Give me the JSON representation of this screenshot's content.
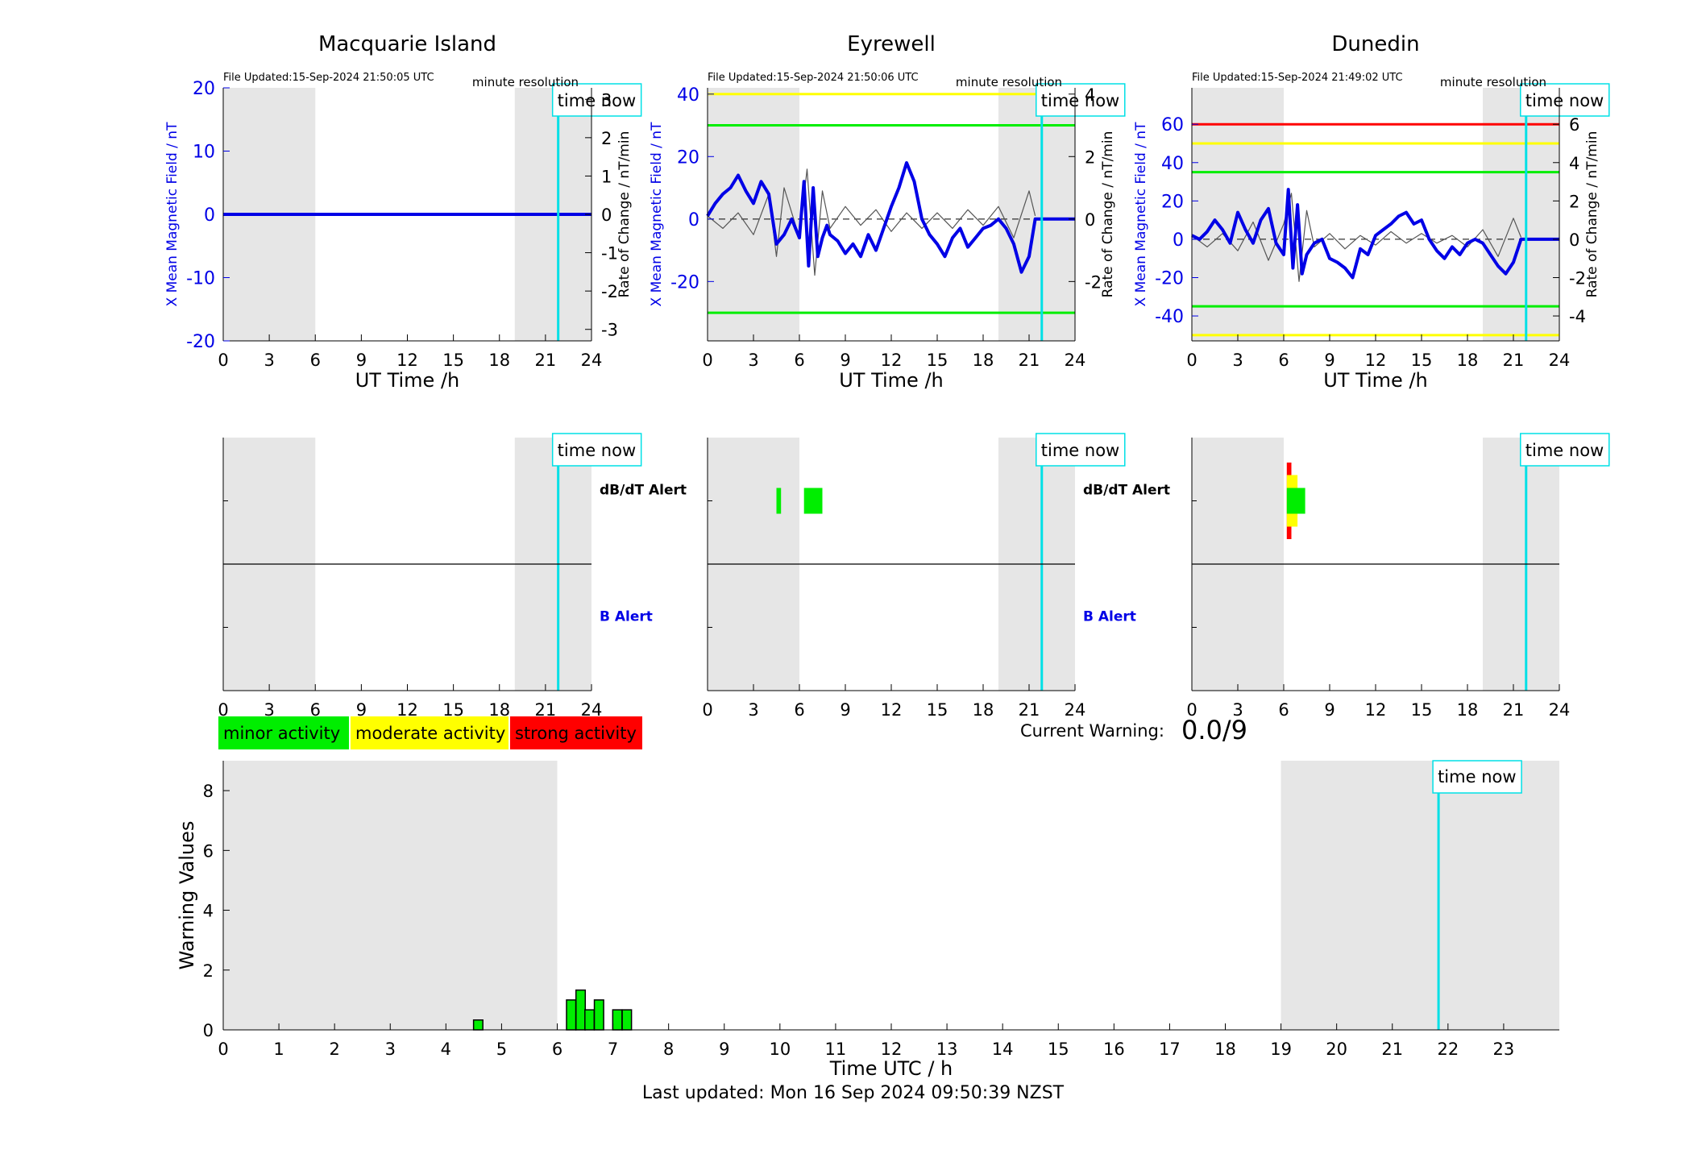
{
  "page": {
    "last_updated": "Last updated: Mon 16 Sep 2024 09:50:39 NZST",
    "current_warning_label": "Current Warning:",
    "current_warning_value": "0.0/9",
    "time_now_label": "time now",
    "minute_resolution_label": "minute resolution",
    "legend": [
      {
        "label": "minor activity",
        "color": "#00ee00"
      },
      {
        "label": "moderate activity",
        "color": "#ffff00"
      },
      {
        "label": "strong activity",
        "color": "#ff0000"
      }
    ],
    "colors": {
      "x_field": "#0000e6",
      "rate": "#555555",
      "time_now": "#00e0e6",
      "night_shade": "#e6e6e6"
    }
  },
  "chart_data": [
    {
      "id": "macquarie-field",
      "type": "line",
      "title": "Macquarie Island",
      "file_updated": "File Updated:15-Sep-2024 21:50:05 UTC",
      "xlabel": "UT Time /h",
      "ylabel": "X Mean Magnetic Field / nT",
      "ylabel_right": "Rate of Change / nT/min",
      "xlim": [
        0,
        24
      ],
      "ylim": [
        -20,
        20
      ],
      "ylim_right": [
        -3.3,
        3.3
      ],
      "xticks": [
        "0",
        "3",
        "6",
        "9",
        "12",
        "15",
        "18",
        "21",
        "24"
      ],
      "yticks": [
        "-20",
        "-10",
        "0",
        "10",
        "20"
      ],
      "yticks_right": [
        "-3",
        "-2",
        "-1",
        "0",
        "1",
        "2",
        "3"
      ],
      "night": [
        [
          0,
          6
        ],
        [
          19,
          24
        ]
      ],
      "time_now": 21.83,
      "thresholds": [],
      "series": [
        {
          "name": "",
          "color": "#0000e6",
          "x": [
            0,
            24
          ],
          "y": [
            0,
            0
          ]
        }
      ]
    },
    {
      "id": "eyrewell-field",
      "type": "line",
      "title": "Eyrewell",
      "file_updated": "File Updated:15-Sep-2024 21:50:06 UTC",
      "xlabel": "UT Time /h",
      "ylabel": "X Mean Magnetic Field / nT",
      "ylabel_right": "Rate of Change / nT/min",
      "xlim": [
        0,
        24
      ],
      "ylim": [
        -39,
        42
      ],
      "ylim_right": [
        -3.9,
        4.2
      ],
      "xticks": [
        "0",
        "3",
        "6",
        "9",
        "12",
        "15",
        "18",
        "21",
        "24"
      ],
      "yticks": [
        "-20",
        "0",
        "20",
        "40"
      ],
      "yticks_right": [
        "-2",
        "0",
        "2",
        "4"
      ],
      "night": [
        [
          0,
          6
        ],
        [
          19,
          24
        ]
      ],
      "time_now": 21.83,
      "thresholds": [
        {
          "value": 40,
          "color": "#ffff00"
        },
        {
          "value": 30,
          "color": "#00ee00"
        },
        {
          "value": -30,
          "color": "#00ee00"
        }
      ],
      "series": [
        {
          "name": "",
          "color": "#0000e6",
          "x": [
            0,
            0.5,
            1,
            1.5,
            2,
            2.5,
            3,
            3.5,
            4,
            4.5,
            5,
            5.5,
            6,
            6.3,
            6.6,
            6.9,
            7.2,
            7.5,
            7.8,
            8,
            8.5,
            9,
            9.5,
            10,
            10.5,
            11,
            11.5,
            12,
            12.5,
            13,
            13.5,
            14,
            14.5,
            15,
            15.5,
            16,
            16.5,
            17,
            17.5,
            18,
            18.5,
            19,
            19.5,
            20,
            20.5,
            21,
            21.4,
            21.5,
            24
          ],
          "y": [
            1,
            5,
            8,
            10,
            14,
            9,
            5,
            12,
            8,
            -8,
            -5,
            0,
            -6,
            12,
            -15,
            10,
            -12,
            -6,
            -2,
            -5,
            -7,
            -11,
            -8,
            -12,
            -5,
            -10,
            -3,
            4,
            10,
            18,
            12,
            0,
            -5,
            -8,
            -12,
            -6,
            -3,
            -9,
            -6,
            -3,
            -2,
            0,
            -3,
            -8,
            -17,
            -12,
            0,
            0,
            0
          ]
        },
        {
          "name": "",
          "color": "#555555",
          "x": [
            0,
            1,
            2,
            3,
            4,
            4.5,
            5,
            6,
            6.5,
            7,
            7.5,
            8,
            9,
            10,
            11,
            12,
            13,
            14,
            15,
            16,
            17,
            18,
            19,
            20,
            21,
            21.4
          ],
          "y": [
            0.1,
            -0.3,
            0.2,
            -0.5,
            0.8,
            -1.2,
            1.0,
            -0.6,
            1.6,
            -1.8,
            0.9,
            -0.3,
            0.4,
            -0.2,
            0.3,
            -0.4,
            0.2,
            -0.3,
            0.2,
            -0.3,
            0.3,
            -0.2,
            0.4,
            -0.6,
            0.9,
            0.1
          ]
        }
      ]
    },
    {
      "id": "dunedin-field",
      "type": "line",
      "title": "Dunedin",
      "file_updated": "File Updated:15-Sep-2024 21:49:02 UTC",
      "xlabel": "UT Time /h",
      "ylabel": "X Mean Magnetic Field / nT",
      "ylabel_right": "Rate of Change / nT/min",
      "xlim": [
        0,
        24
      ],
      "ylim": [
        -53,
        79
      ],
      "ylim_right": [
        -5.3,
        7.9
      ],
      "xticks": [
        "0",
        "3",
        "6",
        "9",
        "12",
        "15",
        "18",
        "21",
        "24"
      ],
      "yticks": [
        "-40",
        "-20",
        "0",
        "20",
        "40",
        "60"
      ],
      "yticks_right": [
        "-4",
        "-2",
        "0",
        "2",
        "4",
        "6"
      ],
      "night": [
        [
          0,
          6
        ],
        [
          19,
          24
        ]
      ],
      "time_now": 21.83,
      "thresholds": [
        {
          "value": 60,
          "color": "#ff0000"
        },
        {
          "value": 50,
          "color": "#ffff00"
        },
        {
          "value": 35,
          "color": "#00ee00"
        },
        {
          "value": -35,
          "color": "#00ee00"
        },
        {
          "value": -50,
          "color": "#ffff00"
        }
      ],
      "series": [
        {
          "name": "",
          "color": "#0000e6",
          "x": [
            0,
            0.5,
            1,
            1.5,
            2,
            2.5,
            3,
            3.5,
            4,
            4.5,
            5,
            5.5,
            6,
            6.3,
            6.6,
            6.9,
            7.2,
            7.5,
            8,
            8.5,
            9,
            9.5,
            10,
            10.5,
            11,
            11.5,
            12,
            12.5,
            13,
            13.5,
            14,
            14.5,
            15,
            15.5,
            16,
            16.5,
            17,
            17.5,
            18,
            18.5,
            19,
            19.5,
            20,
            20.5,
            21,
            21.5,
            24
          ],
          "y": [
            2,
            0,
            4,
            10,
            5,
            -2,
            14,
            5,
            -2,
            10,
            16,
            -2,
            -8,
            26,
            -15,
            18,
            -18,
            -8,
            -2,
            0,
            -10,
            -12,
            -15,
            -20,
            -5,
            -8,
            2,
            5,
            8,
            12,
            14,
            8,
            10,
            0,
            -6,
            -10,
            -4,
            -8,
            -2,
            0,
            -2,
            -8,
            -14,
            -18,
            -12,
            0,
            0
          ]
        },
        {
          "name": "",
          "color": "#555555",
          "x": [
            0,
            1,
            2,
            3,
            4,
            5,
            6,
            6.5,
            7,
            7.5,
            8,
            9,
            10,
            11,
            12,
            13,
            14,
            15,
            16,
            17,
            18,
            19,
            20,
            21,
            21.5
          ],
          "y": [
            0.2,
            -0.4,
            0.3,
            -0.6,
            0.9,
            -1.1,
            0.8,
            2.4,
            -2.2,
            1.5,
            -0.4,
            0.3,
            -0.5,
            0.2,
            -0.3,
            0.4,
            -0.2,
            0.3,
            -0.2,
            0.2,
            -0.4,
            0.5,
            -0.9,
            1.1,
            0.1
          ]
        }
      ]
    },
    {
      "id": "macquarie-alert",
      "type": "bar",
      "xlim": [
        0,
        24
      ],
      "xticks": [
        "0",
        "3",
        "6",
        "9",
        "12",
        "15",
        "18",
        "21",
        "24"
      ],
      "night": [
        [
          0,
          6
        ],
        [
          19,
          24
        ]
      ],
      "time_now": 21.83,
      "dbdt_label": "dB/dT Alert",
      "b_label": "B Alert",
      "dbdt_events": [],
      "b_events": []
    },
    {
      "id": "eyrewell-alert",
      "type": "bar",
      "xlim": [
        0,
        24
      ],
      "xticks": [
        "0",
        "3",
        "6",
        "9",
        "12",
        "15",
        "18",
        "21",
        "24"
      ],
      "night": [
        [
          0,
          6
        ],
        [
          19,
          24
        ]
      ],
      "time_now": 21.83,
      "dbdt_label": "dB/dT Alert",
      "b_label": "B Alert",
      "dbdt_events": [
        {
          "start": 4.5,
          "end": 4.8,
          "level": 1
        },
        {
          "start": 6.3,
          "end": 7.5,
          "level": 1
        }
      ],
      "b_events": []
    },
    {
      "id": "dunedin-alert",
      "type": "bar",
      "xlim": [
        0,
        24
      ],
      "xticks": [
        "0",
        "3",
        "6",
        "9",
        "12",
        "15",
        "18",
        "21",
        "24"
      ],
      "night": [
        [
          0,
          6
        ],
        [
          19,
          24
        ]
      ],
      "time_now": 21.83,
      "dbdt_label": "",
      "b_label": "",
      "dbdt_events": [
        {
          "start": 6.2,
          "end": 6.5,
          "level": 3
        },
        {
          "start": 6.2,
          "end": 6.9,
          "level": 2
        },
        {
          "start": 6.2,
          "end": 7.4,
          "level": 1
        }
      ],
      "b_events": []
    },
    {
      "id": "warning-values",
      "type": "bar",
      "xlabel": "Time UTC / h",
      "ylabel": "Warning Values",
      "xlim": [
        0,
        24
      ],
      "ylim": [
        0,
        9
      ],
      "xticks": [
        "0",
        "1",
        "2",
        "3",
        "4",
        "5",
        "6",
        "7",
        "8",
        "9",
        "10",
        "11",
        "12",
        "13",
        "14",
        "15",
        "16",
        "17",
        "18",
        "19",
        "20",
        "21",
        "22",
        "23"
      ],
      "yticks": [
        "0",
        "2",
        "4",
        "6",
        "8"
      ],
      "night": [
        [
          0,
          6
        ],
        [
          19,
          24
        ]
      ],
      "time_now": 21.83,
      "bar_width": 0.167,
      "bars": [
        {
          "x": 4.58,
          "value": 0.33
        },
        {
          "x": 6.25,
          "value": 1.0
        },
        {
          "x": 6.42,
          "value": 1.33
        },
        {
          "x": 6.58,
          "value": 0.67
        },
        {
          "x": 6.75,
          "value": 1.0
        },
        {
          "x": 7.08,
          "value": 0.67
        },
        {
          "x": 7.25,
          "value": 0.67
        }
      ]
    }
  ]
}
